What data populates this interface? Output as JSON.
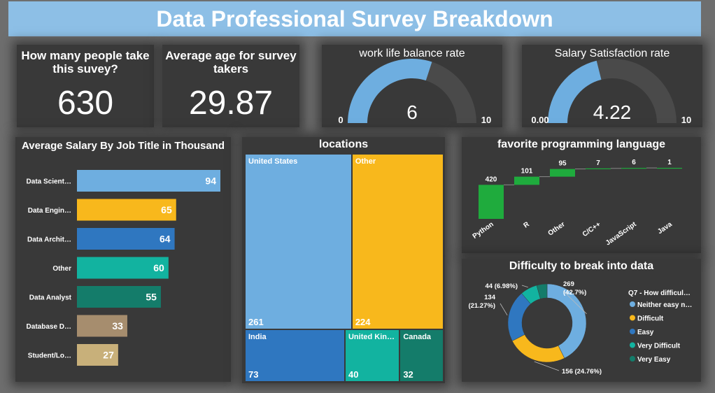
{
  "title": "Data Professional Survey Breakdown",
  "kpis": {
    "people": {
      "label": "How many people take this suvey?",
      "value": "630"
    },
    "age": {
      "label": "Average age for survey takers",
      "value": "29.87"
    }
  },
  "gauges": {
    "worklife": {
      "title": "work life balance rate",
      "value": 6,
      "value_text": "6",
      "min": 0,
      "max": 10,
      "min_text": "0",
      "max_text": "10"
    },
    "salary": {
      "title": "Salary Satisfaction rate",
      "value": 4.22,
      "value_text": "4.22",
      "min": 0,
      "max": 10,
      "min_text": "0.00",
      "max_text": "10"
    }
  },
  "salary_chart": {
    "title": "Average Salary By Job Title in Thousand",
    "type": "bar",
    "categories": [
      "Data Scient…",
      "Data Engin…",
      "Data Archit…",
      "Other",
      "Data Analyst",
      "Database D…",
      "Student/Lo…"
    ],
    "values": [
      94,
      65,
      64,
      60,
      55,
      33,
      27
    ],
    "colors": [
      "#6eaee0",
      "#f8b81c",
      "#2f77c0",
      "#12b3a0",
      "#147c6a",
      "#a68d6e",
      "#c8b07a"
    ]
  },
  "locations": {
    "title": "locations",
    "items": [
      {
        "label": "United States",
        "value": "261",
        "color": "#6eaee0"
      },
      {
        "label": "Other",
        "value": "224",
        "color": "#f8b81c"
      },
      {
        "label": "India",
        "value": "73",
        "color": "#2f77c0"
      },
      {
        "label": "United Kin…",
        "value": "40",
        "color": "#12b3a0"
      },
      {
        "label": "Canada",
        "value": "32",
        "color": "#147c6a"
      }
    ]
  },
  "languages": {
    "title": "favorite programming language",
    "type": "waterfall",
    "categories": [
      "Python",
      "R",
      "Other",
      "C/C++",
      "JavaScript",
      "Java"
    ],
    "values": [
      420,
      101,
      95,
      7,
      6,
      1
    ],
    "color": "#1fab3d"
  },
  "difficulty": {
    "title": "Difficulty to break into data",
    "type": "donut",
    "legend_title": "Q7 - How difficul…",
    "slices": [
      {
        "name": "Neither easy n…",
        "value": 269,
        "label": "269 (42.7%)",
        "color": "#6eaee0"
      },
      {
        "name": "Difficult",
        "value": 156,
        "label": "156 (24.76%)",
        "color": "#f8b81c"
      },
      {
        "name": "Easy",
        "value": 134,
        "label": "134 (21.27%)",
        "color": "#2f77c0"
      },
      {
        "name": "Very Difficult",
        "value": 44,
        "label": "44 (6.98%)",
        "color": "#12b3a0"
      },
      {
        "name": "Very Easy",
        "value": 27,
        "label": "",
        "color": "#147c6a"
      }
    ]
  },
  "chart_data": [
    {
      "type": "bar",
      "title": "Average Salary By Job Title in Thousand",
      "categories": [
        "Data Scient…",
        "Data Engin…",
        "Data Archit…",
        "Other",
        "Data Analyst",
        "Database D…",
        "Student/Lo…"
      ],
      "values": [
        94,
        65,
        64,
        60,
        55,
        33,
        27
      ]
    },
    {
      "type": "treemap",
      "title": "locations",
      "categories": [
        "United States",
        "Other",
        "India",
        "United Kin…",
        "Canada"
      ],
      "values": [
        261,
        224,
        73,
        40,
        32
      ]
    },
    {
      "type": "bar",
      "title": "favorite programming language",
      "categories": [
        "Python",
        "R",
        "Other",
        "C/C++",
        "JavaScript",
        "Java"
      ],
      "values": [
        420,
        101,
        95,
        7,
        6,
        1
      ]
    },
    {
      "type": "pie",
      "title": "Difficulty to break into data",
      "categories": [
        "Neither easy n…",
        "Difficult",
        "Easy",
        "Very Difficult",
        "Very Easy"
      ],
      "values": [
        269,
        156,
        134,
        44,
        27
      ]
    },
    {
      "type": "gauge",
      "title": "work life balance rate",
      "value": 6,
      "range": [
        0,
        10
      ]
    },
    {
      "type": "gauge",
      "title": "Salary Satisfaction rate",
      "value": 4.22,
      "range": [
        0,
        10
      ]
    }
  ]
}
